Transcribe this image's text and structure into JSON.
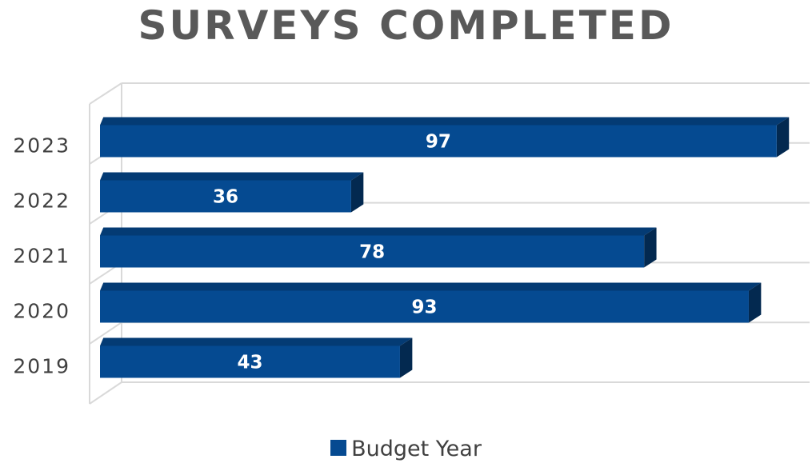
{
  "chart_data": {
    "type": "bar",
    "orientation": "horizontal",
    "style": "3d",
    "title": "SURVEYS COMPLETED",
    "categories": [
      "2019",
      "2020",
      "2021",
      "2022",
      "2023"
    ],
    "series": [
      {
        "name": "Budget Year",
        "values": [
          43,
          93,
          78,
          36,
          97
        ],
        "color": "#054a91"
      }
    ],
    "data_labels": true,
    "xlim": [
      0,
      100
    ],
    "grid": true,
    "legend_position": "bottom"
  }
}
